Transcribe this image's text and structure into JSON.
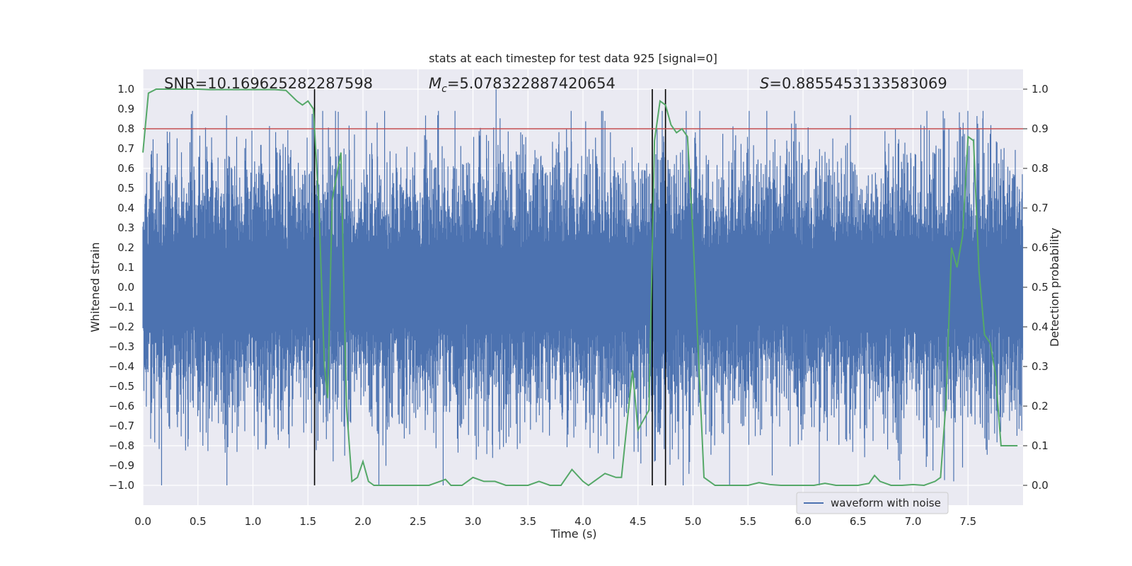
{
  "chart_data": {
    "type": "line",
    "title": "stats at each timestep for test data 925 [signal=0]",
    "xlabel": "Time (s)",
    "ylabel": "Whitened strain",
    "ylabel_right": "Detection probability",
    "xlim": [
      0.0,
      8.0
    ],
    "ylim": [
      -1.1,
      1.1
    ],
    "ylim_right": [
      -0.05,
      1.05
    ],
    "xticks": [
      "0.0",
      "0.5",
      "1.0",
      "1.5",
      "2.0",
      "2.5",
      "3.0",
      "3.5",
      "4.0",
      "4.5",
      "5.0",
      "5.5",
      "6.0",
      "6.5",
      "7.0",
      "7.5"
    ],
    "yticks": [
      "1.0",
      "0.9",
      "0.8",
      "0.7",
      "0.6",
      "0.5",
      "0.4",
      "0.3",
      "0.2",
      "0.1",
      "0.0",
      "−0.1",
      "−0.2",
      "−0.3",
      "−0.4",
      "−0.5",
      "−0.6",
      "−0.7",
      "−0.8",
      "−0.9",
      "−1.0"
    ],
    "yticks_right": [
      "1.0",
      "0.9",
      "0.8",
      "0.7",
      "0.6",
      "0.5",
      "0.4",
      "0.3",
      "0.2",
      "0.1",
      "0.0"
    ],
    "annotations": {
      "snr": "SNR=10.169625282287598",
      "mc_symbol": "M",
      "mc_sub": "c",
      "mc_value": "=5.078322887420654",
      "s_symbol": "S",
      "s_value": "=0.8855453133583069"
    },
    "threshold": 0.9,
    "vertical_lines": [
      1.56,
      4.63,
      4.75
    ],
    "legend": {
      "label": "waveform with noise",
      "location": "lower-right"
    },
    "series": [
      {
        "name": "waveform with noise",
        "kind": "noise",
        "color": "#4c72b0",
        "noise_amplitude_typical": 0.35,
        "noise_peak_max": 0.89,
        "noise_peak_min": -1.0
      },
      {
        "name": "detection probability",
        "color": "#55a868",
        "x": [
          0.0,
          0.05,
          0.12,
          0.2,
          0.3,
          0.4,
          0.5,
          0.6,
          0.7,
          0.8,
          0.9,
          1.0,
          1.1,
          1.2,
          1.3,
          1.4,
          1.45,
          1.5,
          1.55,
          1.6,
          1.65,
          1.68,
          1.72,
          1.8,
          1.85,
          1.9,
          1.95,
          2.0,
          2.05,
          2.1,
          2.2,
          2.3,
          2.4,
          2.5,
          2.6,
          2.7,
          2.75,
          2.8,
          2.85,
          2.9,
          3.0,
          3.1,
          3.2,
          3.3,
          3.4,
          3.5,
          3.6,
          3.7,
          3.8,
          3.9,
          4.0,
          4.05,
          4.1,
          4.2,
          4.3,
          4.35,
          4.45,
          4.5,
          4.6,
          4.65,
          4.7,
          4.75,
          4.8,
          4.85,
          4.9,
          4.95,
          5.0,
          5.1,
          5.2,
          5.3,
          5.4,
          5.5,
          5.6,
          5.7,
          5.8,
          5.9,
          6.0,
          6.1,
          6.2,
          6.3,
          6.4,
          6.5,
          6.6,
          6.65,
          6.7,
          6.8,
          6.9,
          7.0,
          7.1,
          7.2,
          7.25,
          7.3,
          7.35,
          7.4,
          7.45,
          7.5,
          7.55,
          7.6,
          7.65,
          7.7,
          7.75,
          7.8,
          7.85,
          7.9,
          7.95
        ],
        "values": [
          0.84,
          0.99,
          1.0,
          1.0,
          1.0,
          1.0,
          1.0,
          0.999,
          0.999,
          0.999,
          0.999,
          0.999,
          0.999,
          0.999,
          0.997,
          0.97,
          0.96,
          0.97,
          0.95,
          0.7,
          0.3,
          0.22,
          0.72,
          0.84,
          0.2,
          0.01,
          0.02,
          0.06,
          0.01,
          0.0,
          0.0,
          0.0,
          0.0,
          0.0,
          0.0,
          0.01,
          0.015,
          0.0,
          0.0,
          0.0,
          0.02,
          0.01,
          0.01,
          0.0,
          0.0,
          0.0,
          0.01,
          0.0,
          0.0,
          0.04,
          0.01,
          0.0,
          0.01,
          0.03,
          0.02,
          0.02,
          0.29,
          0.14,
          0.19,
          0.87,
          0.97,
          0.96,
          0.91,
          0.89,
          0.9,
          0.88,
          0.63,
          0.02,
          0.0,
          0.0,
          0.0,
          0.0,
          0.007,
          0.002,
          0.0,
          0.0,
          0.0,
          0.0,
          0.005,
          0.0,
          0.0,
          0.0,
          0.005,
          0.025,
          0.01,
          0.0,
          0.0,
          0.002,
          0.0,
          0.01,
          0.02,
          0.21,
          0.6,
          0.55,
          0.63,
          0.88,
          0.87,
          0.54,
          0.38,
          0.36,
          0.28,
          0.1,
          0.1,
          0.1,
          0.1
        ]
      },
      {
        "name": "threshold",
        "color": "#c44e52",
        "value": 0.9
      }
    ]
  }
}
